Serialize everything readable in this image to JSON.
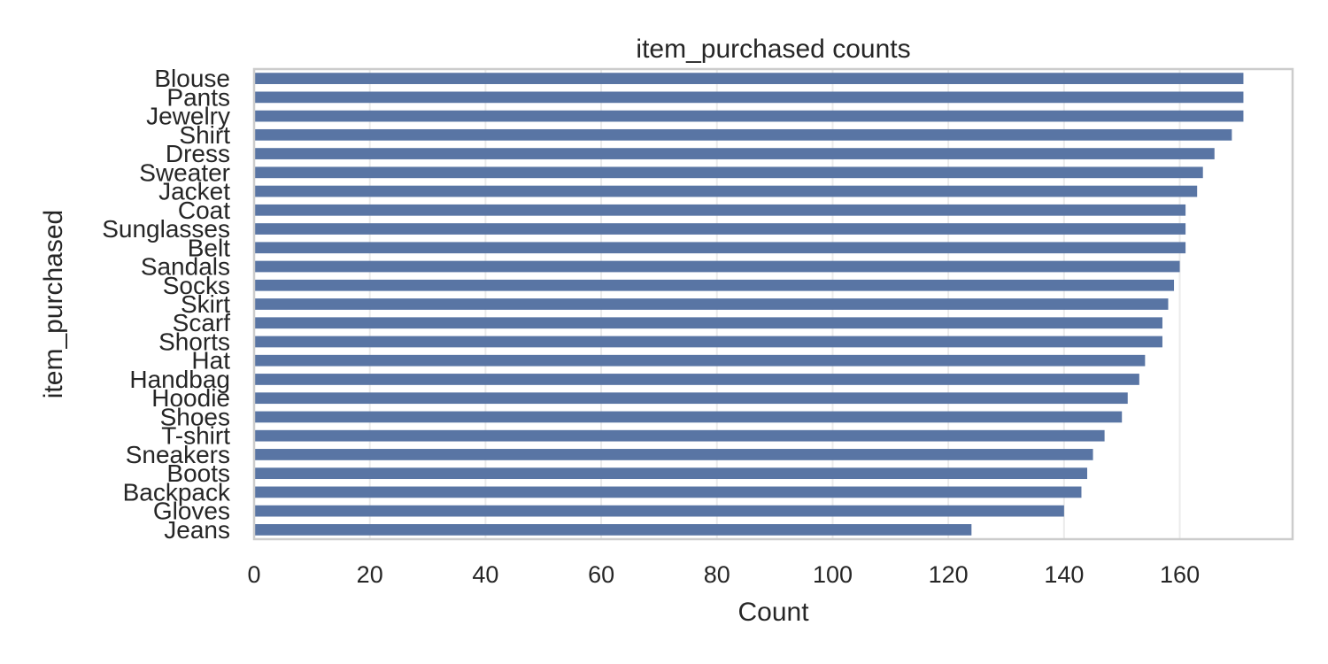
{
  "chart_data": {
    "type": "bar",
    "orientation": "horizontal",
    "title": "item_purchased counts",
    "xlabel": "Count",
    "ylabel": "item_purchased",
    "categories": [
      "Blouse",
      "Pants",
      "Jewelry",
      "Shirt",
      "Dress",
      "Sweater",
      "Jacket",
      "Coat",
      "Sunglasses",
      "Belt",
      "Sandals",
      "Socks",
      "Skirt",
      "Scarf",
      "Shorts",
      "Hat",
      "Handbag",
      "Hoodie",
      "Shoes",
      "T-shirt",
      "Sneakers",
      "Boots",
      "Backpack",
      "Gloves",
      "Jeans"
    ],
    "values": [
      171,
      171,
      171,
      169,
      166,
      164,
      163,
      161,
      161,
      161,
      160,
      159,
      158,
      157,
      157,
      154,
      153,
      151,
      150,
      147,
      145,
      144,
      143,
      140,
      124
    ],
    "xticks": [
      0,
      20,
      40,
      60,
      80,
      100,
      120,
      140,
      160
    ],
    "xlim": [
      0,
      179.5
    ],
    "grid": true,
    "bar_color": "#5975a4",
    "spine_color": "#cccccc",
    "text_color": "#262626"
  }
}
